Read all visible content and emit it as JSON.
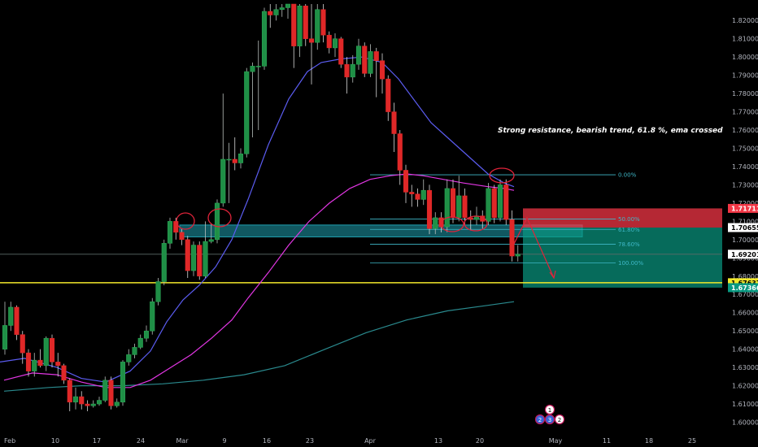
{
  "chart_data": {
    "type": "candlestick",
    "symbol_note": "",
    "annotation": "Strong resistance, bearish trend, 61.8 %, ema crossed",
    "ylim": [
      1.594,
      1.829
    ],
    "x_ticks": [
      {
        "label": "Feb",
        "pos": 5
      },
      {
        "label": "10",
        "pos": 68
      },
      {
        "label": "17",
        "pos": 119
      },
      {
        "label": "24",
        "pos": 173
      },
      {
        "label": "Mar",
        "pos": 224
      },
      {
        "label": "9",
        "pos": 276
      },
      {
        "label": "16",
        "pos": 328
      },
      {
        "label": "23",
        "pos": 381
      },
      {
        "label": "Apr",
        "pos": 455
      },
      {
        "label": "13",
        "pos": 539
      },
      {
        "label": "20",
        "pos": 590
      },
      {
        "label": "May",
        "pos": 683
      },
      {
        "label": "11",
        "pos": 746
      },
      {
        "label": "18",
        "pos": 798
      },
      {
        "label": "25",
        "pos": 851
      }
    ],
    "y_ticks": [
      "1.82000",
      "1.81000",
      "1.80000",
      "1.79000",
      "1.78000",
      "1.77000",
      "1.76000",
      "1.75000",
      "1.74000",
      "1.73000",
      "1.72000",
      "1.71000",
      "1.70000",
      "1.69000",
      "1.68000",
      "1.67000",
      "1.66000",
      "1.65000",
      "1.64000",
      "1.63000",
      "1.62000",
      "1.61000",
      "1.60000"
    ],
    "price_tags": [
      {
        "label": "1.71711",
        "value": 1.7171,
        "bg": "#f23645",
        "fg": "#ffffff"
      },
      {
        "label": "1.70655",
        "value": 1.7066,
        "bg": "#ffffff",
        "fg": "#000000"
      },
      {
        "label": "1.69201",
        "value": 1.692,
        "bg": "#ffffff",
        "fg": "#000000"
      },
      {
        "label": "1.67637",
        "value": 1.6764,
        "bg": "#f2e82b",
        "fg": "#000000"
      },
      {
        "label": "1.67366",
        "value": 1.6737,
        "bg": "#089981",
        "fg": "#ffffff"
      }
    ],
    "fib_levels": [
      {
        "label": "0.00%",
        "value": 1.7355
      },
      {
        "label": "50.00%",
        "value": 1.7113
      },
      {
        "label": "61.80%",
        "value": 1.7056
      },
      {
        "label": "78.60%",
        "value": 1.6975
      },
      {
        "label": "100.00%",
        "value": 1.6872
      }
    ],
    "horizontal_levels": [
      {
        "value": 1.6764,
        "color": "#f2e82b"
      },
      {
        "value": 1.692,
        "color": "#5d6b68"
      }
    ],
    "resistance_zone": [
      1.7015,
      1.708
    ],
    "position": {
      "entry": 1.7066,
      "stop": 1.7171,
      "target": 1.6737
    },
    "candles": [
      [
        1.64,
        1.653,
        1.666,
        1.637
      ],
      [
        1.653,
        1.663,
        1.666,
        1.65
      ],
      [
        1.663,
        1.648,
        1.664,
        1.645
      ],
      [
        1.648,
        1.638,
        1.65,
        1.632
      ],
      [
        1.638,
        1.628,
        1.64,
        1.625
      ],
      [
        1.628,
        1.634,
        1.638,
        1.625
      ],
      [
        1.634,
        1.631,
        1.64,
        1.63
      ],
      [
        1.631,
        1.646,
        1.647,
        1.628
      ],
      [
        1.646,
        1.633,
        1.648,
        1.63
      ],
      [
        1.633,
        1.631,
        1.638,
        1.625
      ],
      [
        1.631,
        1.623,
        1.632,
        1.621
      ],
      [
        1.623,
        1.611,
        1.624,
        1.606
      ],
      [
        1.611,
        1.614,
        1.619,
        1.607
      ],
      [
        1.614,
        1.61,
        1.617,
        1.607
      ],
      [
        1.61,
        1.609,
        1.612,
        1.606
      ],
      [
        1.609,
        1.61,
        1.612,
        1.608
      ],
      [
        1.61,
        1.612,
        1.614,
        1.609
      ],
      [
        1.612,
        1.623,
        1.625,
        1.611
      ],
      [
        1.623,
        1.609,
        1.625,
        1.607
      ],
      [
        1.609,
        1.611,
        1.613,
        1.608
      ],
      [
        1.611,
        1.633,
        1.634,
        1.609
      ],
      [
        1.633,
        1.637,
        1.64,
        1.631
      ],
      [
        1.637,
        1.641,
        1.643,
        1.635
      ],
      [
        1.641,
        1.646,
        1.648,
        1.64
      ],
      [
        1.646,
        1.65,
        1.653,
        1.644
      ],
      [
        1.65,
        1.666,
        1.668,
        1.648
      ],
      [
        1.666,
        1.677,
        1.679,
        1.664
      ],
      [
        1.677,
        1.698,
        1.7,
        1.675
      ],
      [
        1.698,
        1.71,
        1.712,
        1.695
      ],
      [
        1.71,
        1.704,
        1.712,
        1.7
      ],
      [
        1.704,
        1.7,
        1.706,
        1.697
      ],
      [
        1.7,
        1.683,
        1.702,
        1.679
      ],
      [
        1.683,
        1.697,
        1.699,
        1.68
      ],
      [
        1.697,
        1.68,
        1.699,
        1.678
      ],
      [
        1.68,
        1.699,
        1.71,
        1.679
      ],
      [
        1.699,
        1.7,
        1.709,
        1.698
      ],
      [
        1.7,
        1.72,
        1.722,
        1.698
      ],
      [
        1.72,
        1.744,
        1.78,
        1.718
      ],
      [
        1.744,
        1.744,
        1.753,
        1.72
      ],
      [
        1.744,
        1.742,
        1.756,
        1.738
      ],
      [
        1.742,
        1.747,
        1.75,
        1.739
      ],
      [
        1.747,
        1.792,
        1.794,
        1.745
      ],
      [
        1.792,
        1.795,
        1.797,
        1.756
      ],
      [
        1.795,
        1.795,
        1.809,
        1.76
      ],
      [
        1.795,
        1.825,
        1.827,
        1.793
      ],
      [
        1.825,
        1.823,
        1.829,
        1.816
      ],
      [
        1.823,
        1.826,
        1.829,
        1.82
      ],
      [
        1.826,
        1.827,
        1.829,
        1.822
      ],
      [
        1.827,
        1.829,
        1.829,
        1.821
      ],
      [
        1.829,
        1.806,
        1.829,
        1.794
      ],
      [
        1.806,
        1.828,
        1.829,
        1.8
      ],
      [
        1.828,
        1.81,
        1.829,
        1.806
      ],
      [
        1.81,
        1.808,
        1.829,
        1.785
      ],
      [
        1.808,
        1.826,
        1.829,
        1.804
      ],
      [
        1.826,
        1.812,
        1.829,
        1.808
      ],
      [
        1.812,
        1.805,
        1.814,
        1.802
      ],
      [
        1.805,
        1.81,
        1.813,
        1.8
      ],
      [
        1.81,
        1.796,
        1.811,
        1.794
      ],
      [
        1.796,
        1.789,
        1.8,
        1.78
      ],
      [
        1.789,
        1.796,
        1.801,
        1.786
      ],
      [
        1.796,
        1.806,
        1.81,
        1.793
      ],
      [
        1.806,
        1.791,
        1.808,
        1.789
      ],
      [
        1.791,
        1.803,
        1.807,
        1.789
      ],
      [
        1.803,
        1.798,
        1.805,
        1.778
      ],
      [
        1.798,
        1.788,
        1.802,
        1.78
      ],
      [
        1.788,
        1.77,
        1.79,
        1.765
      ],
      [
        1.77,
        1.758,
        1.775,
        1.748
      ],
      [
        1.758,
        1.738,
        1.76,
        1.73
      ],
      [
        1.738,
        1.726,
        1.741,
        1.72
      ],
      [
        1.726,
        1.725,
        1.73,
        1.718
      ],
      [
        1.725,
        1.722,
        1.728,
        1.718
      ],
      [
        1.722,
        1.727,
        1.733,
        1.719
      ],
      [
        1.727,
        1.706,
        1.73,
        1.703
      ],
      [
        1.706,
        1.712,
        1.715,
        1.703
      ],
      [
        1.712,
        1.707,
        1.715,
        1.704
      ],
      [
        1.707,
        1.728,
        1.733,
        1.704
      ],
      [
        1.728,
        1.712,
        1.733,
        1.709
      ],
      [
        1.712,
        1.724,
        1.735,
        1.71
      ],
      [
        1.724,
        1.712,
        1.728,
        1.708
      ],
      [
        1.712,
        1.711,
        1.716,
        1.705
      ],
      [
        1.711,
        1.713,
        1.718,
        1.708
      ],
      [
        1.713,
        1.71,
        1.716,
        1.706
      ],
      [
        1.71,
        1.728,
        1.731,
        1.708
      ],
      [
        1.728,
        1.712,
        1.73,
        1.709
      ],
      [
        1.712,
        1.73,
        1.733,
        1.71
      ],
      [
        1.73,
        1.711,
        1.733,
        1.708
      ],
      [
        1.711,
        1.691,
        1.716,
        1.688
      ],
      [
        1.691,
        1.692,
        1.697,
        1.688
      ]
    ],
    "ema_fast": [
      [
        0,
        1.633
      ],
      [
        30,
        1.635
      ],
      [
        70,
        1.63
      ],
      [
        100,
        1.624
      ],
      [
        130,
        1.622
      ],
      [
        160,
        1.628
      ],
      [
        185,
        1.639
      ],
      [
        205,
        1.655
      ],
      [
        225,
        1.667
      ],
      [
        245,
        1.675
      ],
      [
        265,
        1.685
      ],
      [
        285,
        1.7
      ],
      [
        305,
        1.722
      ],
      [
        330,
        1.752
      ],
      [
        355,
        1.777
      ],
      [
        378,
        1.792
      ],
      [
        395,
        1.797
      ],
      [
        420,
        1.799
      ],
      [
        445,
        1.8
      ],
      [
        470,
        1.797
      ],
      [
        490,
        1.788
      ],
      [
        510,
        1.776
      ],
      [
        530,
        1.764
      ],
      [
        550,
        1.756
      ],
      [
        570,
        1.748
      ],
      [
        585,
        1.742
      ],
      [
        600,
        1.736
      ],
      [
        620,
        1.731
      ],
      [
        632,
        1.729
      ]
    ],
    "ema_mid": [
      [
        5,
        1.623
      ],
      [
        40,
        1.627
      ],
      [
        70,
        1.626
      ],
      [
        100,
        1.622
      ],
      [
        130,
        1.619
      ],
      [
        160,
        1.619
      ],
      [
        185,
        1.623
      ],
      [
        210,
        1.63
      ],
      [
        235,
        1.637
      ],
      [
        260,
        1.646
      ],
      [
        285,
        1.656
      ],
      [
        305,
        1.668
      ],
      [
        330,
        1.682
      ],
      [
        355,
        1.697
      ],
      [
        380,
        1.71
      ],
      [
        405,
        1.72
      ],
      [
        430,
        1.728
      ],
      [
        455,
        1.733
      ],
      [
        480,
        1.735
      ],
      [
        500,
        1.736
      ],
      [
        520,
        1.735
      ],
      [
        545,
        1.733
      ],
      [
        570,
        1.731
      ],
      [
        600,
        1.729
      ],
      [
        620,
        1.728
      ],
      [
        632,
        1.727
      ]
    ],
    "ema_slow": [
      [
        5,
        1.617
      ],
      [
        60,
        1.619
      ],
      [
        100,
        1.62
      ],
      [
        150,
        1.62
      ],
      [
        200,
        1.621
      ],
      [
        250,
        1.623
      ],
      [
        300,
        1.626
      ],
      [
        350,
        1.631
      ],
      [
        400,
        1.64
      ],
      [
        450,
        1.649
      ],
      [
        500,
        1.656
      ],
      [
        550,
        1.661
      ],
      [
        600,
        1.664
      ],
      [
        632,
        1.666
      ]
    ]
  },
  "colors": {
    "bull": "#26a69a",
    "bullBody": "#1f8f46",
    "bear": "#e02828",
    "ema_fast": "#5b5cf0",
    "ema_mid": "#e236e3",
    "ema_slow": "#2a8a8e",
    "zone": "#1fa0b0",
    "fib": "#3fb8c8",
    "circle": "#e0233a"
  },
  "event_badges": [
    "1",
    "2",
    "3",
    "2"
  ]
}
